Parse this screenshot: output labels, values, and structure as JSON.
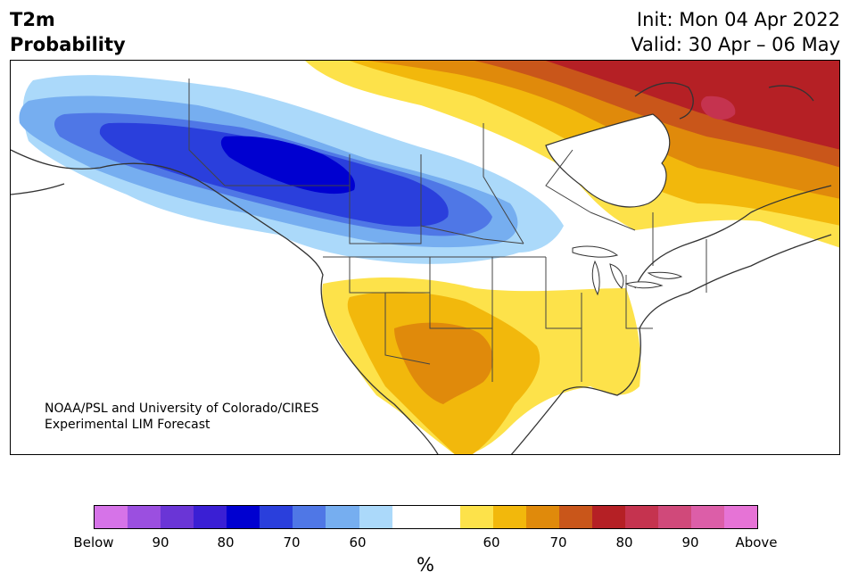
{
  "title": {
    "left_line1": "T2m",
    "left_line2": "Probability",
    "init": "Init: Mon 04 Apr 2022",
    "valid": "Valid: 30 Apr – 06 May"
  },
  "credit": {
    "line1": "NOAA/PSL and University of Colorado/CIRES",
    "line2": "Experimental LIM Forecast"
  },
  "colorbar": {
    "colors": [
      "#d673e8",
      "#9b4fe0",
      "#6a35d6",
      "#3a1fd4",
      "#0000d0",
      "#2a3fdc",
      "#4f77e6",
      "#76aef0",
      "#abd9fa",
      "#ffffff",
      "#fde24a",
      "#f2b80c",
      "#e08a0b",
      "#c9561a",
      "#b52025",
      "#c5334f",
      "#d0497a",
      "#dc5ea8",
      "#e673d6"
    ],
    "labels": [
      "Below",
      "90",
      "80",
      "70",
      "60",
      "60",
      "70",
      "80",
      "90",
      "Above"
    ],
    "unit": "%"
  },
  "palette": {
    "cold_weak": "#abd9fa",
    "cold_med": "#76aef0",
    "cold_strong": "#4f77e6",
    "cold_vstrong": "#2a3fdc",
    "cold_max": "#0000d0",
    "warm_weak": "#fde24a",
    "warm_med": "#f2b80c",
    "warm_strong": "#e08a0b",
    "warm_vstrong": "#c9561a",
    "warm_max": "#b52025",
    "warm_extreme": "#c5334f"
  }
}
